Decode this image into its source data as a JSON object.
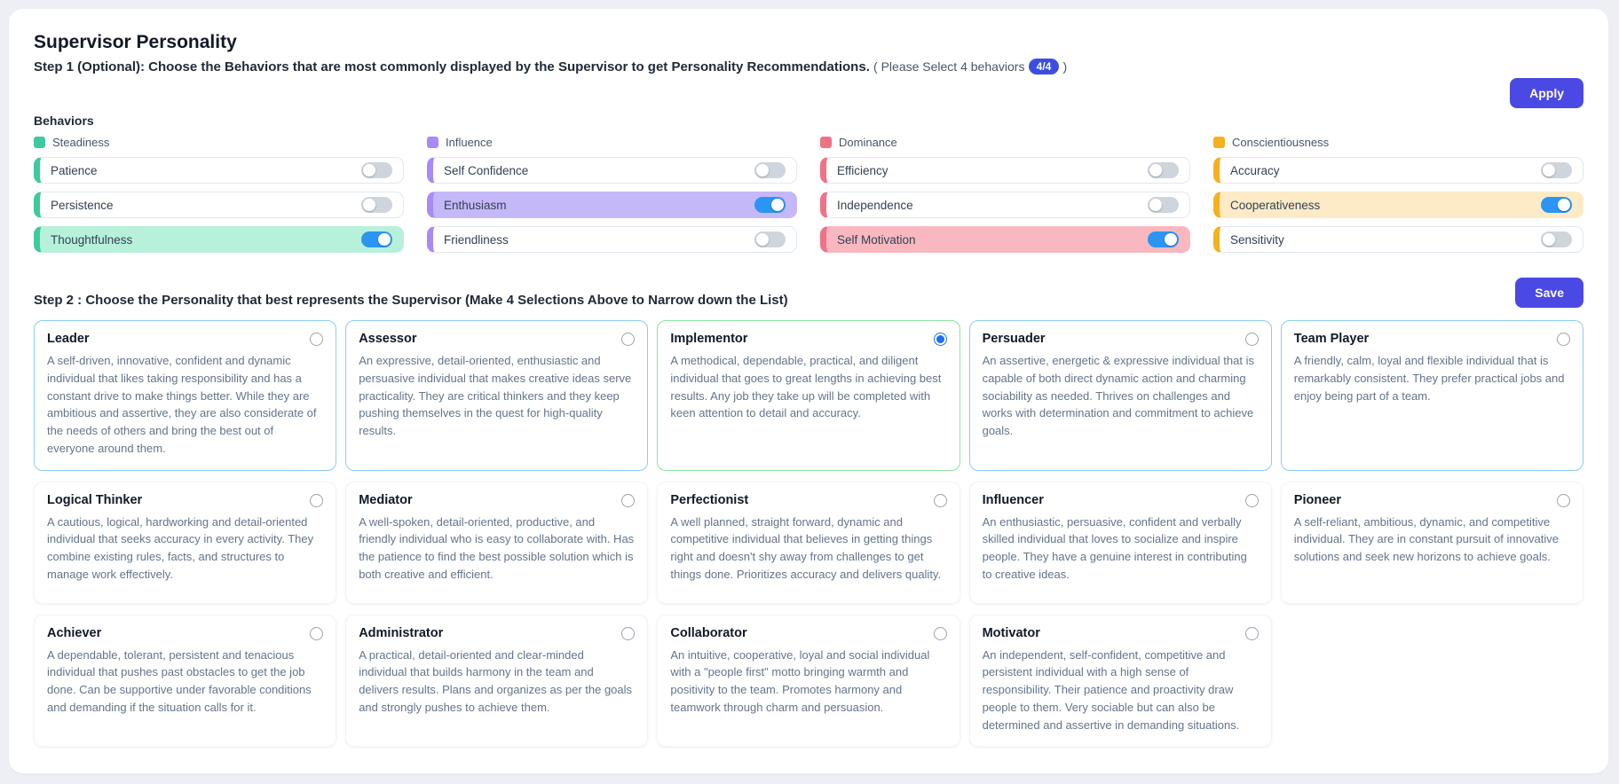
{
  "page": {
    "title": "Supervisor Personality"
  },
  "step1": {
    "text_bold": "Step 1 (Optional): Choose the Behaviors that are most commonly displayed by the Supervisor to get Personality Recommendations.",
    "hint_prefix": "( Please Select 4 behaviors",
    "badge": "4/4",
    "hint_suffix": ")",
    "apply_label": "Apply"
  },
  "behaviors": {
    "heading": "Behaviors",
    "toggle_on_color": "#2b95f4",
    "groups": [
      {
        "name": "Steadiness",
        "color": "#3fc9a0",
        "tint": "#b7f1da",
        "items": [
          {
            "label": "Patience",
            "on": false
          },
          {
            "label": "Persistence",
            "on": false
          },
          {
            "label": "Thoughtfulness",
            "on": true
          }
        ]
      },
      {
        "name": "Influence",
        "color": "#a78bfa",
        "tint": "#c4b8f8",
        "items": [
          {
            "label": "Self Confidence",
            "on": false
          },
          {
            "label": "Enthusiasm",
            "on": true
          },
          {
            "label": "Friendliness",
            "on": false
          }
        ]
      },
      {
        "name": "Dominance",
        "color": "#ee7386",
        "tint": "#f9b8c0",
        "items": [
          {
            "label": "Efficiency",
            "on": false
          },
          {
            "label": "Independence",
            "on": false
          },
          {
            "label": "Self Motivation",
            "on": true
          }
        ]
      },
      {
        "name": "Conscientiousness",
        "color": "#f4b01f",
        "tint": "#fcebc6",
        "items": [
          {
            "label": "Accuracy",
            "on": false
          },
          {
            "label": "Cooperativeness",
            "on": true
          },
          {
            "label": "Sensitivity",
            "on": false
          }
        ]
      }
    ]
  },
  "step2": {
    "heading": "Step 2 : Choose the Personality that best represents the Supervisor (Make 4 Selections Above to Narrow down the List)",
    "save_label": "Save"
  },
  "personalities": [
    {
      "name": "Leader",
      "accent": "blue",
      "selected": false,
      "description": "A self-driven, innovative, confident and dynamic individual that likes taking responsibility and has a constant drive to make things better. While they are ambitious and assertive, they are also considerate of the needs of others and bring the best out of everyone around them."
    },
    {
      "name": "Assessor",
      "accent": "blue",
      "selected": false,
      "description": "An expressive, detail-oriented, enthusiastic and persuasive individual that makes creative ideas serve practicality. They are critical thinkers and they keep pushing themselves in the quest for high-quality results."
    },
    {
      "name": "Implementor",
      "accent": "green",
      "selected": true,
      "description": "A methodical, dependable, practical, and diligent individual that goes to great lengths in achieving best results. Any job they take up will be completed with keen attention to detail and accuracy."
    },
    {
      "name": "Persuader",
      "accent": "blue",
      "selected": false,
      "description": "An assertive, energetic & expressive individual that is capable of both direct dynamic action and charming sociability as needed. Thrives on challenges and works with determination and commitment to achieve goals."
    },
    {
      "name": "Team Player",
      "accent": "blue",
      "selected": false,
      "description": "A friendly, calm, loyal and flexible individual that is remarkably consistent. They prefer practical jobs and enjoy being part of a team."
    },
    {
      "name": "Logical Thinker",
      "accent": "none",
      "selected": false,
      "description": "A cautious, logical, hardworking and detail-oriented individual that seeks accuracy in every activity. They combine existing rules, facts, and structures to manage work effectively."
    },
    {
      "name": "Mediator",
      "accent": "none",
      "selected": false,
      "description": "A well-spoken, detail-oriented, productive, and friendly individual who is easy to collaborate with. Has the patience to find the best possible solution which is both creative and efficient."
    },
    {
      "name": "Perfectionist",
      "accent": "none",
      "selected": false,
      "description": "A well planned, straight forward, dynamic and competitive individual that believes in getting things right and doesn't shy away from challenges to get things done. Prioritizes accuracy and delivers quality."
    },
    {
      "name": "Influencer",
      "accent": "none",
      "selected": false,
      "description": "An enthusiastic, persuasive, confident and verbally skilled individual that loves to socialize and inspire people. They have a genuine interest in contributing to creative ideas."
    },
    {
      "name": "Pioneer",
      "accent": "none",
      "selected": false,
      "description": "A self-reliant, ambitious, dynamic, and competitive individual. They are in constant pursuit of innovative solutions and seek new horizons to achieve goals."
    },
    {
      "name": "Achiever",
      "accent": "none",
      "selected": false,
      "description": "A dependable, tolerant, persistent and tenacious individual that pushes past obstacles to get the job done. Can be supportive under favorable conditions and demanding if the situation calls for it."
    },
    {
      "name": "Administrator",
      "accent": "none",
      "selected": false,
      "description": "A practical, detail-oriented and clear-minded individual that builds harmony in the team and delivers results. Plans and organizes as per the goals and strongly pushes to achieve them."
    },
    {
      "name": "Collaborator",
      "accent": "none",
      "selected": false,
      "description": "An intuitive, cooperative, loyal and social individual with a \"people first\" motto bringing warmth and positivity to the team. Promotes harmony and teamwork through charm and persuasion."
    },
    {
      "name": "Motivator",
      "accent": "none",
      "selected": false,
      "description": "An independent, self-confident, competitive and persistent individual with a high sense of responsibility. Their patience and proactivity draw people to them. Very sociable but can also be determined and assertive in demanding situations."
    }
  ]
}
